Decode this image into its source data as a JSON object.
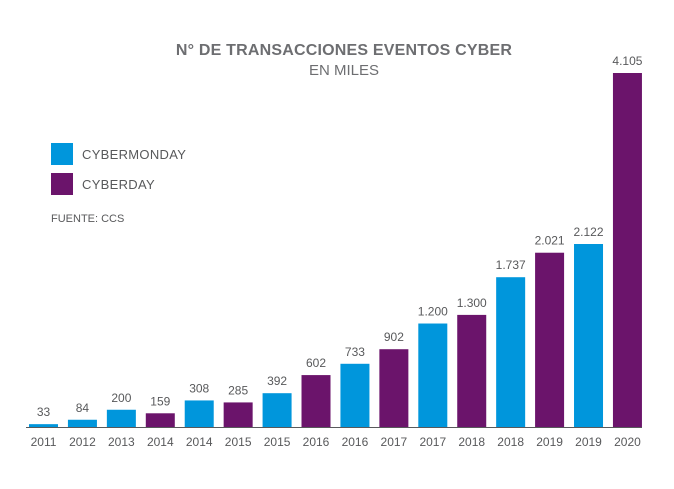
{
  "title": "N° DE TRANSACCIONES EVENTOS CYBER",
  "subtitle": "EN MILES",
  "source": "FUENTE: CCS",
  "legend": [
    {
      "label": "CYBERMONDAY",
      "color": "#0096dc"
    },
    {
      "label": "CYBERDAY",
      "color": "#6b146b"
    }
  ],
  "chart_data": {
    "type": "bar",
    "title": "N° DE TRANSACCIONES EVENTOS CYBER",
    "subtitle": "EN MILES",
    "categories": [
      "2011",
      "2012",
      "2013",
      "2014",
      "2014",
      "2015",
      "2015",
      "2016",
      "2016",
      "2017",
      "2017",
      "2018",
      "2018",
      "2019",
      "2019",
      "2020"
    ],
    "values": [
      33,
      84,
      200,
      159,
      308,
      285,
      392,
      602,
      733,
      902,
      1200,
      1300,
      1737,
      2021,
      2122,
      4105
    ],
    "value_labels": [
      "33",
      "84",
      "200",
      "159",
      "308",
      "285",
      "392",
      "602",
      "733",
      "902",
      "1.200",
      "1.300",
      "1.737",
      "2.021",
      "2.122",
      "4.105"
    ],
    "series_of_bar": [
      "CYBERMONDAY",
      "CYBERMONDAY",
      "CYBERMONDAY",
      "CYBERDAY",
      "CYBERMONDAY",
      "CYBERDAY",
      "CYBERMONDAY",
      "CYBERDAY",
      "CYBERMONDAY",
      "CYBERDAY",
      "CYBERMONDAY",
      "CYBERDAY",
      "CYBERMONDAY",
      "CYBERDAY",
      "CYBERMONDAY",
      "CYBERDAY"
    ],
    "series": [
      {
        "name": "CYBERMONDAY",
        "color": "#0096dc"
      },
      {
        "name": "CYBERDAY",
        "color": "#6b146b"
      }
    ],
    "ylim": [
      0,
      4105
    ],
    "grid": false,
    "legend_position": "top-left"
  }
}
